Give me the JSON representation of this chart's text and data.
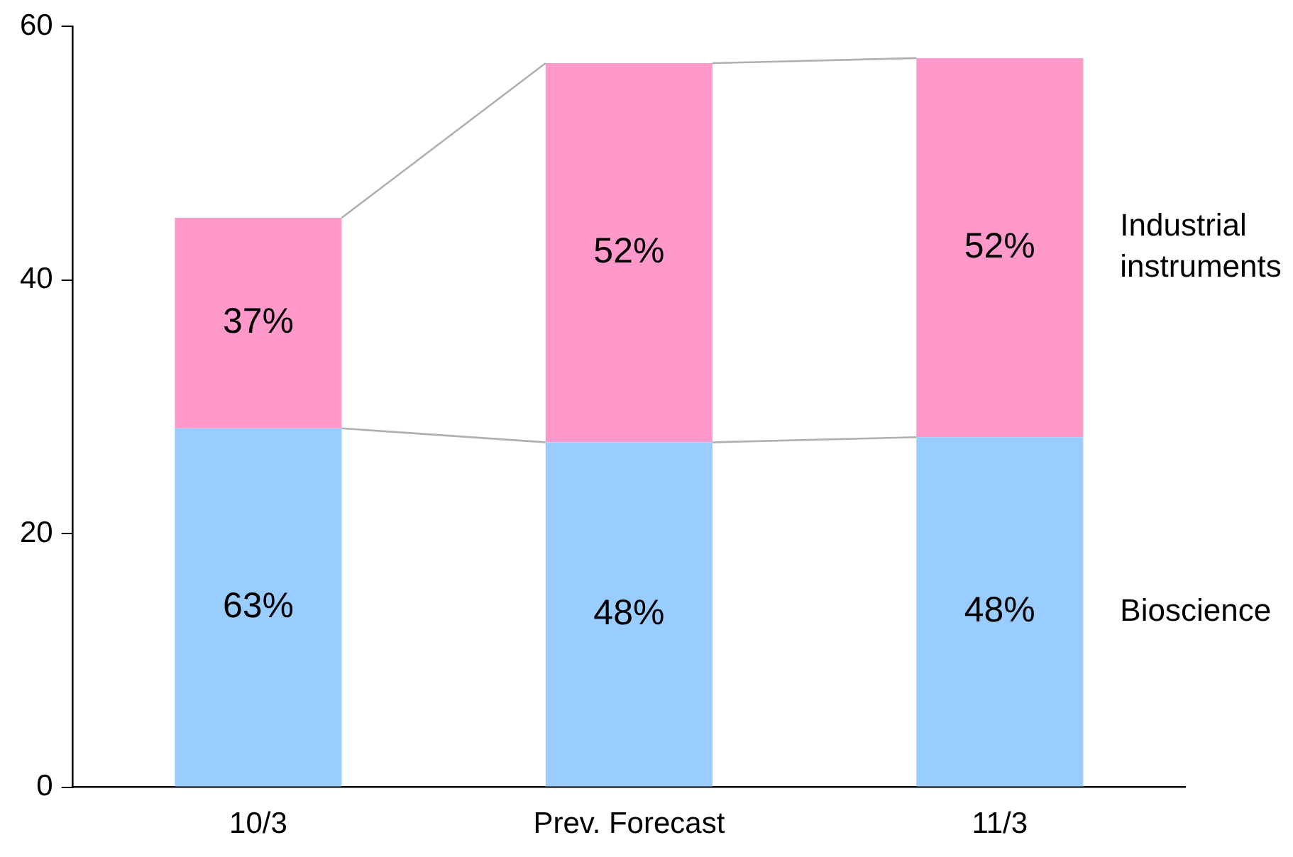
{
  "chart_data": {
    "type": "bar",
    "stacked": true,
    "categories": [
      "10/3",
      "Prev. Forecast",
      "11/3"
    ],
    "series": [
      {
        "name": "Bioscience",
        "color": "#99ccff",
        "values": [
          28.3,
          27.2,
          27.6
        ]
      },
      {
        "name": "Industrial instruments",
        "color": "#ff99cc",
        "values": [
          16.6,
          29.9,
          29.9
        ]
      }
    ],
    "annotations": [
      "63%",
      "48%",
      "48%",
      "37%",
      "52%",
      "52%"
    ],
    "ylim": [
      0,
      60
    ],
    "yticks": [
      0,
      20,
      40,
      60
    ],
    "grid": false,
    "legend": false
  }
}
